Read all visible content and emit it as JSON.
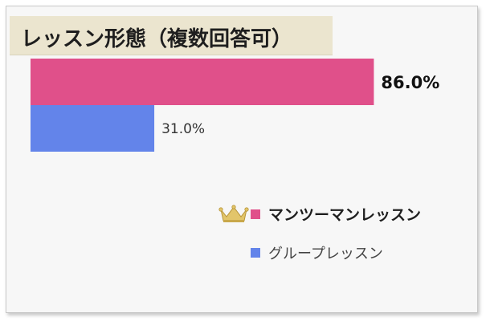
{
  "title": "レッスン形態（複数回答可）",
  "colors": {
    "series_0": "#e0508a",
    "series_1": "#6384ea",
    "title_bg": "#ebe5cf",
    "crown": "#e2c56a"
  },
  "legend": [
    {
      "label": "マンツーマンレッスン",
      "icon": "crown-icon"
    },
    {
      "label": "グループレッスン"
    }
  ],
  "chart_data": {
    "type": "bar",
    "orientation": "horizontal",
    "title": "レッスン形態（複数回答可）",
    "unit": "%",
    "xlim": [
      0,
      100
    ],
    "grid": false,
    "legend_position": "bottom-right",
    "categories": [
      "マンツーマンレッスン",
      "グループレッスン"
    ],
    "values": [
      86.0,
      31.0
    ],
    "value_labels": [
      "86.0%",
      "31.0%"
    ],
    "label_emphasis": [
      true,
      false
    ]
  }
}
